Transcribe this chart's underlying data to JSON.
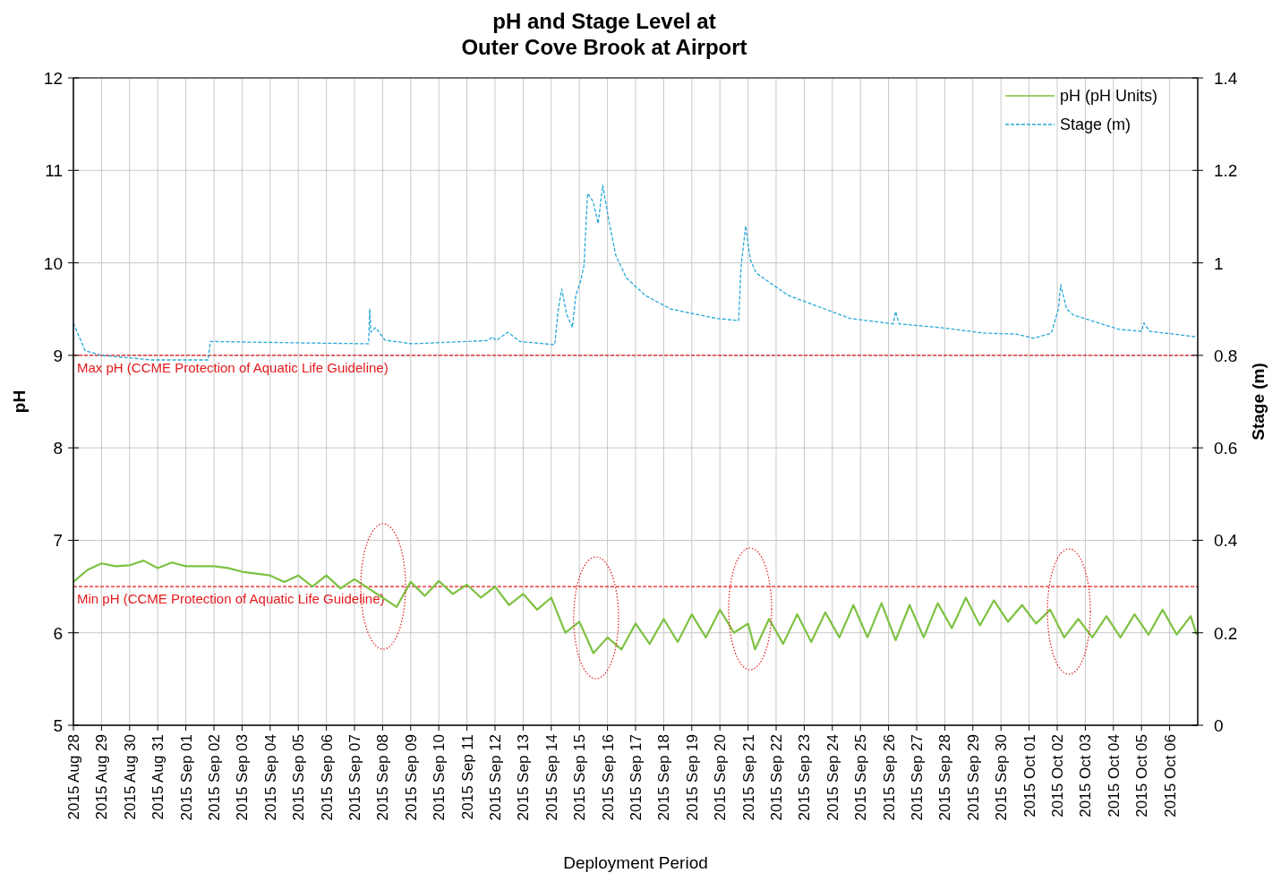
{
  "chart_data": {
    "type": "line",
    "title": "pH and Stage Level at\nOuter Cove Brook at Airport",
    "xlabel": "Deployment Period",
    "ylabel": "pH",
    "y2label": "Stage (m)",
    "xlim": [
      "2015-08-28",
      "2015-10-07"
    ],
    "xticks": [
      {
        "value": "2015-08-28",
        "label": "2015 Aug 28"
      },
      {
        "value": "2015-08-29",
        "label": "2015 Aug 29"
      },
      {
        "value": "2015-08-30",
        "label": "2015 Aug 30"
      },
      {
        "value": "2015-08-31",
        "label": "2015 Aug 31"
      },
      {
        "value": "2015-09-01",
        "label": "2015 Sep 01"
      },
      {
        "value": "2015-09-02",
        "label": "2015 Sep 02"
      },
      {
        "value": "2015-09-03",
        "label": "2015 Sep 03"
      },
      {
        "value": "2015-09-04",
        "label": "2015 Sep 04"
      },
      {
        "value": "2015-09-05",
        "label": "2015 Sep 05"
      },
      {
        "value": "2015-09-06",
        "label": "2015 Sep 06"
      },
      {
        "value": "2015-09-07",
        "label": "2015 Sep 07"
      },
      {
        "value": "2015-09-08",
        "label": "2015 Sep 08"
      },
      {
        "value": "2015-09-09",
        "label": "2015 Sep 09"
      },
      {
        "value": "2015-09-10",
        "label": "2015 Sep 10"
      },
      {
        "value": "2015-09-11",
        "label": "2015 Sep 11"
      },
      {
        "value": "2015-09-12",
        "label": "2015 Sep 12"
      },
      {
        "value": "2015-09-13",
        "label": "2015 Sep 13"
      },
      {
        "value": "2015-09-14",
        "label": "2015 Sep 14"
      },
      {
        "value": "2015-09-15",
        "label": "2015 Sep 15"
      },
      {
        "value": "2015-09-16",
        "label": "2015 Sep 16"
      },
      {
        "value": "2015-09-17",
        "label": "2015 Sep 17"
      },
      {
        "value": "2015-09-18",
        "label": "2015 Sep 18"
      },
      {
        "value": "2015-09-19",
        "label": "2015 Sep 19"
      },
      {
        "value": "2015-09-20",
        "label": "2015 Sep 20"
      },
      {
        "value": "2015-09-21",
        "label": "2015 Sep 21"
      },
      {
        "value": "2015-09-22",
        "label": "2015 Sep 22"
      },
      {
        "value": "2015-09-23",
        "label": "2015 Sep 23"
      },
      {
        "value": "2015-09-24",
        "label": "2015 Sep 24"
      },
      {
        "value": "2015-09-25",
        "label": "2015 Sep 25"
      },
      {
        "value": "2015-09-26",
        "label": "2015 Sep 26"
      },
      {
        "value": "2015-09-27",
        "label": "2015 Sep 27"
      },
      {
        "value": "2015-09-28",
        "label": "2015 Sep 28"
      },
      {
        "value": "2015-09-29",
        "label": "2015 Sep 29"
      },
      {
        "value": "2015-09-30",
        "label": "2015 Sep 30"
      },
      {
        "value": "2015-10-01",
        "label": "2015 Oct 01"
      },
      {
        "value": "2015-10-02",
        "label": "2015 Oct 02"
      },
      {
        "value": "2015-10-03",
        "label": "2015 Oct 03"
      },
      {
        "value": "2015-10-04",
        "label": "2015 Oct 04"
      },
      {
        "value": "2015-10-05",
        "label": "2015 Oct 05"
      },
      {
        "value": "2015-10-06",
        "label": "2015 Oct 06"
      }
    ],
    "ylim": [
      5,
      12
    ],
    "yticks": [
      5,
      6,
      7,
      8,
      9,
      10,
      11,
      12
    ],
    "y2lim": [
      0,
      1.4
    ],
    "y2ticks": [
      0,
      0.2,
      0.4,
      0.6,
      0.8,
      1,
      1.2,
      1.4
    ],
    "grid": true,
    "legend": "top right",
    "series": [
      {
        "name": "pH (pH Units)",
        "color": "#7dc242",
        "line_style": "solid",
        "x": [
          "2015-08-28T00:00",
          "2015-08-28T12:00",
          "2015-08-29T00:00",
          "2015-08-29T12:00",
          "2015-08-30T00:00",
          "2015-08-30T12:00",
          "2015-08-31T00:00",
          "2015-08-31T12:00",
          "2015-09-01T00:00",
          "2015-09-01T12:00",
          "2015-09-02T00:00",
          "2015-09-02T12:00",
          "2015-09-03T00:00",
          "2015-09-03T12:00",
          "2015-09-04T00:00",
          "2015-09-04T12:00",
          "2015-09-05T00:00",
          "2015-09-05T12:00",
          "2015-09-06T00:00",
          "2015-09-06T12:00",
          "2015-09-07T00:00",
          "2015-09-07T12:00",
          "2015-09-08T00:00",
          "2015-09-08T12:00",
          "2015-09-09T00:00",
          "2015-09-09T12:00",
          "2015-09-10T00:00",
          "2015-09-10T12:00",
          "2015-09-11T00:00",
          "2015-09-11T12:00",
          "2015-09-12T00:00",
          "2015-09-12T12:00",
          "2015-09-13T00:00",
          "2015-09-13T12:00",
          "2015-09-14T00:00",
          "2015-09-14T12:00",
          "2015-09-15T00:00",
          "2015-09-15T12:00",
          "2015-09-16T00:00",
          "2015-09-16T12:00",
          "2015-09-17T00:00",
          "2015-09-17T12:00",
          "2015-09-18T00:00",
          "2015-09-18T12:00",
          "2015-09-19T00:00",
          "2015-09-19T12:00",
          "2015-09-20T00:00",
          "2015-09-20T12:00",
          "2015-09-21T00:00",
          "2015-09-21T06:00",
          "2015-09-21T18:00",
          "2015-09-22T06:00",
          "2015-09-22T18:00",
          "2015-09-23T06:00",
          "2015-09-23T18:00",
          "2015-09-24T06:00",
          "2015-09-24T18:00",
          "2015-09-25T06:00",
          "2015-09-25T18:00",
          "2015-09-26T06:00",
          "2015-09-26T18:00",
          "2015-09-27T06:00",
          "2015-09-27T18:00",
          "2015-09-28T06:00",
          "2015-09-28T18:00",
          "2015-09-29T06:00",
          "2015-09-29T18:00",
          "2015-09-30T06:00",
          "2015-09-30T18:00",
          "2015-10-01T06:00",
          "2015-10-01T18:00",
          "2015-10-02T06:00",
          "2015-10-02T18:00",
          "2015-10-03T06:00",
          "2015-10-03T18:00",
          "2015-10-04T06:00",
          "2015-10-04T18:00",
          "2015-10-05T06:00",
          "2015-10-05T18:00",
          "2015-10-06T06:00",
          "2015-10-06T18:00",
          "2015-10-06T23:00"
        ],
        "values": [
          6.55,
          6.68,
          6.75,
          6.72,
          6.73,
          6.78,
          6.7,
          6.76,
          6.72,
          6.72,
          6.72,
          6.7,
          6.66,
          6.64,
          6.62,
          6.55,
          6.62,
          6.5,
          6.62,
          6.48,
          6.58,
          6.48,
          6.38,
          6.28,
          6.55,
          6.4,
          6.56,
          6.42,
          6.52,
          6.38,
          6.5,
          6.3,
          6.42,
          6.25,
          6.38,
          6,
          6.12,
          5.78,
          5.95,
          5.82,
          6.1,
          5.88,
          6.15,
          5.9,
          6.2,
          5.95,
          6.25,
          6,
          6.1,
          5.82,
          6.15,
          5.88,
          6.2,
          5.9,
          6.22,
          5.95,
          6.3,
          5.95,
          6.32,
          5.92,
          6.3,
          5.95,
          6.32,
          6.05,
          6.38,
          6.08,
          6.35,
          6.12,
          6.3,
          6.1,
          6.25,
          5.95,
          6.15,
          5.95,
          6.18,
          5.95,
          6.2,
          5.98,
          6.25,
          5.98,
          6.18,
          5.98
        ]
      },
      {
        "name": "Stage (m)",
        "color": "#29a8d8",
        "line_style": "dashed",
        "axis": "y2",
        "x": [
          "2015-08-28T00:00",
          "2015-08-28T10:00",
          "2015-08-29T00:00",
          "2015-08-30T19:00",
          "2015-09-01T19:00",
          "2015-09-01T21:00",
          "2015-09-04T22:00",
          "2015-09-07T12:00",
          "2015-09-07T13:00",
          "2015-09-07T14:00",
          "2015-09-07T18:00",
          "2015-09-08T02:00",
          "2015-09-09T01:00",
          "2015-09-11T18:00",
          "2015-09-11T22:00",
          "2015-09-12T01:00",
          "2015-09-12T11:00",
          "2015-09-12T21:00",
          "2015-09-14T03:00",
          "2015-09-14T06:00",
          "2015-09-14T09:00",
          "2015-09-14T13:00",
          "2015-09-14T18:00",
          "2015-09-14T21:00",
          "2015-09-15T01:00",
          "2015-09-15T04:00",
          "2015-09-15T07:00",
          "2015-09-15T10:00",
          "2015-09-15T12:00",
          "2015-09-15T16:00",
          "2015-09-15T20:00",
          "2015-09-16T01:00",
          "2015-09-16T07:00",
          "2015-09-16T16:00",
          "2015-09-17T08:00",
          "2015-09-18T06:00",
          "2015-09-19T21:00",
          "2015-09-20T16:00",
          "2015-09-20T18:00",
          "2015-09-20T22:00",
          "2015-09-21T02:00",
          "2015-09-21T07:00",
          "2015-09-22T10:00",
          "2015-09-24T15:00",
          "2015-09-26T04:00",
          "2015-09-26T06:00",
          "2015-09-26T09:00",
          "2015-09-27T20:00",
          "2015-09-29T10:00",
          "2015-09-30T13:00",
          "2015-10-01T04:00",
          "2015-10-01T19:00",
          "2015-10-02T01:00",
          "2015-10-02T03:00",
          "2015-10-02T08:00",
          "2015-10-02T14:00",
          "2015-10-04T05:00",
          "2015-10-05T00:00",
          "2015-10-05T02:00",
          "2015-10-05T07:00",
          "2015-10-06T23:00"
        ],
        "values": [
          0.87,
          0.81,
          0.8,
          0.79,
          0.79,
          0.83,
          0.827,
          0.825,
          0.9,
          0.85,
          0.86,
          0.833,
          0.825,
          0.832,
          0.84,
          0.832,
          0.85,
          0.83,
          0.823,
          0.9,
          0.943,
          0.89,
          0.86,
          0.93,
          0.96,
          0.995,
          1.15,
          1.14,
          1.13,
          1.085,
          1.168,
          1.094,
          1.017,
          0.968,
          0.93,
          0.9,
          0.88,
          0.875,
          0.99,
          1.08,
          1.007,
          0.978,
          0.93,
          0.88,
          0.868,
          0.895,
          0.868,
          0.86,
          0.848,
          0.846,
          0.837,
          0.848,
          0.9,
          0.953,
          0.9,
          0.887,
          0.856,
          0.852,
          0.87,
          0.852,
          0.84
        ]
      }
    ],
    "ref_lines": [
      {
        "axis": "y",
        "value": 9,
        "label": "Max pH  (CCME  Protection of Aquatic Life Guideline)",
        "color": "#e31a1c",
        "line_style": "dashed"
      },
      {
        "axis": "y",
        "value": 6.5,
        "label": "Min pH  (CCME  Protection of Aquatic Life Guideline)",
        "color": "#e31a1c",
        "line_style": "dashed"
      }
    ]
  }
}
